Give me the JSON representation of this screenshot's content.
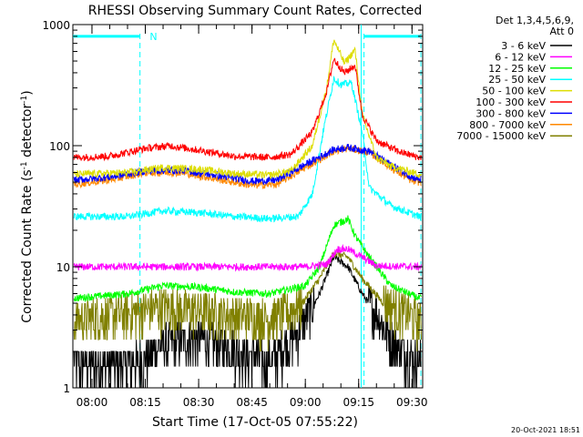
{
  "chart_data": {
    "type": "line",
    "title": "RHESSI Observing Summary Count Rates, Corrected",
    "xlabel": "Start Time (17-Oct-05 07:55:22)",
    "ylabel": "Corrected Count Rate (s",
    "ylabel_sup1": "-1",
    "ylabel_mid": " detector",
    "ylabel_sup2": "-1",
    "ylabel_end": ")",
    "yscale": "log",
    "ylim": [
      1,
      1000
    ],
    "y_ticks": [
      {
        "value": 1,
        "label": "1"
      },
      {
        "value": 10,
        "label": "10"
      },
      {
        "value": 100,
        "label": "100"
      },
      {
        "value": 1000,
        "label": "1000"
      }
    ],
    "xlim_minutes": [
      -5.37,
      93
    ],
    "x_ticks": [
      {
        "minutes": 0,
        "label": "08:00"
      },
      {
        "minutes": 15,
        "label": "08:15"
      },
      {
        "minutes": 30,
        "label": "08:30"
      },
      {
        "minutes": 45,
        "label": "08:45"
      },
      {
        "minutes": 60,
        "label": "09:00"
      },
      {
        "minutes": 75,
        "label": "09:15"
      },
      {
        "minutes": 90,
        "label": "09:30"
      }
    ],
    "legend": {
      "header_line1": "Det 1,3,4,5,6,9,",
      "header_line2": "Att 0",
      "placement": "outside-right"
    },
    "annotations": [
      {
        "label": "N",
        "minutes": 17
      },
      {
        "type": "vline",
        "minutes": 13.5
      },
      {
        "type": "vline",
        "minutes": 76.5
      },
      {
        "type": "vline",
        "minutes": 92.5
      },
      {
        "type": "solid-vline",
        "minutes": 75.7
      }
    ],
    "night_segments": [
      {
        "start": -5.37,
        "end": 13.5,
        "level": 800
      },
      {
        "start": 76.5,
        "end": 92.5,
        "level": 800
      }
    ],
    "series": [
      {
        "name": "3 - 6 keV",
        "color": "#000000",
        "points": [
          [
            -5,
            1.5
          ],
          [
            10,
            1.5
          ],
          [
            15,
            1.7
          ],
          [
            20,
            2.2
          ],
          [
            30,
            2.5
          ],
          [
            40,
            2.0
          ],
          [
            50,
            1.6
          ],
          [
            58,
            2.8
          ],
          [
            64,
            6
          ],
          [
            68,
            12
          ],
          [
            72,
            10
          ],
          [
            76,
            6
          ],
          [
            80,
            4
          ],
          [
            86,
            2
          ],
          [
            92,
            1.6
          ]
        ]
      },
      {
        "name": "6 - 12 keV",
        "color": "#ff00ff",
        "points": [
          [
            -5,
            10
          ],
          [
            20,
            10
          ],
          [
            40,
            10
          ],
          [
            60,
            10
          ],
          [
            66,
            10.5
          ],
          [
            69,
            14
          ],
          [
            72,
            14
          ],
          [
            76,
            12
          ],
          [
            80,
            10.2
          ],
          [
            92,
            10
          ]
        ]
      },
      {
        "name": "12 - 25 keV",
        "color": "#00ff00",
        "points": [
          [
            -5,
            5.5
          ],
          [
            10,
            6
          ],
          [
            20,
            7
          ],
          [
            30,
            6.8
          ],
          [
            40,
            6.2
          ],
          [
            50,
            6
          ],
          [
            60,
            7
          ],
          [
            64,
            10
          ],
          [
            68,
            22
          ],
          [
            72,
            25
          ],
          [
            74,
            18
          ],
          [
            78,
            12
          ],
          [
            84,
            7
          ],
          [
            92,
            5.5
          ]
        ]
      },
      {
        "name": "25 - 50 keV",
        "color": "#00ffff",
        "points": [
          [
            -5,
            26
          ],
          [
            10,
            26
          ],
          [
            20,
            29
          ],
          [
            30,
            28
          ],
          [
            40,
            26
          ],
          [
            50,
            25
          ],
          [
            58,
            26
          ],
          [
            62,
            40
          ],
          [
            65,
            130
          ],
          [
            68,
            360
          ],
          [
            70,
            320
          ],
          [
            73,
            330
          ],
          [
            76,
            130
          ],
          [
            78,
            45
          ],
          [
            84,
            32
          ],
          [
            92,
            26
          ]
        ]
      },
      {
        "name": "50 - 100 keV",
        "color": "#dddd00",
        "points": [
          [
            -5,
            58
          ],
          [
            10,
            60
          ],
          [
            20,
            66
          ],
          [
            30,
            64
          ],
          [
            40,
            59
          ],
          [
            50,
            57
          ],
          [
            56,
            62
          ],
          [
            62,
            100
          ],
          [
            66,
            300
          ],
          [
            68,
            750
          ],
          [
            71,
            480
          ],
          [
            74,
            620
          ],
          [
            76,
            180
          ],
          [
            80,
            80
          ],
          [
            84,
            68
          ],
          [
            92,
            58
          ]
        ]
      },
      {
        "name": "100 - 300 keV",
        "color": "#ff0000",
        "points": [
          [
            -5,
            80
          ],
          [
            5,
            82
          ],
          [
            15,
            95
          ],
          [
            22,
            100
          ],
          [
            30,
            92
          ],
          [
            40,
            82
          ],
          [
            50,
            80
          ],
          [
            56,
            85
          ],
          [
            62,
            130
          ],
          [
            66,
            280
          ],
          [
            68,
            520
          ],
          [
            71,
            400
          ],
          [
            74,
            460
          ],
          [
            76,
            180
          ],
          [
            80,
            110
          ],
          [
            86,
            90
          ],
          [
            92,
            80
          ]
        ]
      },
      {
        "name": "300 - 800 keV",
        "color": "#0000ff",
        "points": [
          [
            -5,
            52
          ],
          [
            5,
            55
          ],
          [
            15,
            62
          ],
          [
            25,
            63
          ],
          [
            35,
            57
          ],
          [
            45,
            51
          ],
          [
            52,
            52
          ],
          [
            60,
            70
          ],
          [
            68,
            93
          ],
          [
            72,
            97
          ],
          [
            78,
            90
          ],
          [
            84,
            70
          ],
          [
            90,
            55
          ],
          [
            92,
            53
          ]
        ]
      },
      {
        "name": "800 - 7000 keV",
        "color": "#ff8800",
        "points": [
          [
            -5,
            48
          ],
          [
            5,
            52
          ],
          [
            15,
            60
          ],
          [
            25,
            60
          ],
          [
            35,
            53
          ],
          [
            45,
            47
          ],
          [
            52,
            48
          ],
          [
            60,
            66
          ],
          [
            68,
            90
          ],
          [
            72,
            95
          ],
          [
            78,
            88
          ],
          [
            84,
            66
          ],
          [
            90,
            51
          ],
          [
            92,
            50
          ]
        ]
      },
      {
        "name": "7000 - 15000 keV",
        "color": "#808000",
        "points": [
          [
            -5,
            3.5
          ],
          [
            10,
            4
          ],
          [
            20,
            4.5
          ],
          [
            30,
            4.2
          ],
          [
            40,
            3.8
          ],
          [
            50,
            3.6
          ],
          [
            58,
            4.5
          ],
          [
            64,
            8
          ],
          [
            68,
            13
          ],
          [
            72,
            12
          ],
          [
            76,
            8
          ],
          [
            82,
            5
          ],
          [
            92,
            3.5
          ]
        ]
      }
    ]
  },
  "footer": {
    "timestamp": "20-Oct-2021 18:51"
  }
}
